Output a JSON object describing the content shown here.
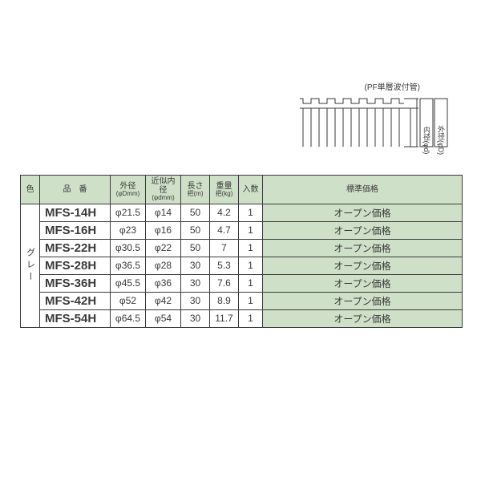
{
  "diagram": {
    "caption": "(PF単層波付管)",
    "label_inner": "内径(φd)",
    "label_outer": "外径(φD)",
    "stroke": "#3a3a3a",
    "fill": "#ffffff"
  },
  "table": {
    "header_bg": "#cfe0c8",
    "price_bg": "#cfe0c8",
    "border_color": "#3a3a3a",
    "text_color": "#3a3a3a",
    "columns": {
      "color": "色",
      "partno": "品　番",
      "od": "外径",
      "od_sub": "(φDmm)",
      "id": "近似内径",
      "id_sub": "(φdmm)",
      "length": "長さ",
      "length_sub": "把(m)",
      "weight": "重量",
      "weight_sub": "把(kg)",
      "qty": "入数",
      "price": "標準価格"
    },
    "color_label": "グレー",
    "rows": [
      {
        "partno": "MFS-14H",
        "od": "φ21.5",
        "id": "φ14",
        "length": "50",
        "weight": "4.2",
        "qty": "1",
        "price": "オープン価格"
      },
      {
        "partno": "MFS-16H",
        "od": "φ23",
        "id": "φ16",
        "length": "50",
        "weight": "4.7",
        "qty": "1",
        "price": "オープン価格"
      },
      {
        "partno": "MFS-22H",
        "od": "φ30.5",
        "id": "φ22",
        "length": "50",
        "weight": "7",
        "qty": "1",
        "price": "オープン価格"
      },
      {
        "partno": "MFS-28H",
        "od": "φ36.5",
        "id": "φ28",
        "length": "30",
        "weight": "5.3",
        "qty": "1",
        "price": "オープン価格"
      },
      {
        "partno": "MFS-36H",
        "od": "φ45.5",
        "id": "φ36",
        "length": "30",
        "weight": "7.6",
        "qty": "1",
        "price": "オープン価格"
      },
      {
        "partno": "MFS-42H",
        "od": "φ52",
        "id": "φ42",
        "length": "30",
        "weight": "8.9",
        "qty": "1",
        "price": "オープン価格"
      },
      {
        "partno": "MFS-54H",
        "od": "φ64.5",
        "id": "φ54",
        "length": "30",
        "weight": "11.7",
        "qty": "1",
        "price": "オープン価格"
      }
    ]
  }
}
